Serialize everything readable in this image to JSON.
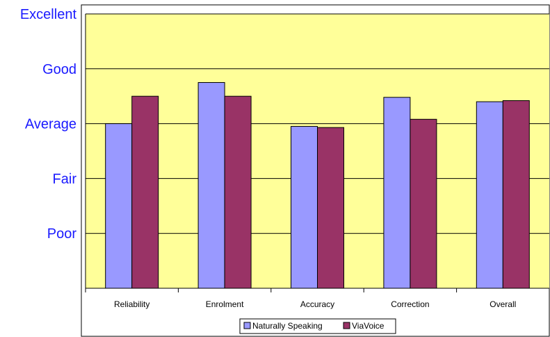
{
  "chart_data": {
    "type": "bar",
    "title": "",
    "xlabel": "",
    "ylabel": "",
    "ylim": [
      0,
      5
    ],
    "y_tick_labels": [
      "Poor",
      "Fair",
      "Average",
      "Good",
      "Excellent"
    ],
    "y_tick_values": [
      1,
      2,
      3,
      4,
      5
    ],
    "categories": [
      "Reliability",
      "Enrolment",
      "Accuracy",
      "Correction",
      "Overall"
    ],
    "series": [
      {
        "name": "Naturally Speaking",
        "color": "#9999ff",
        "values": [
          3.0,
          3.75,
          2.95,
          3.48,
          3.4
        ]
      },
      {
        "name": "ViaVoice",
        "color": "#993366",
        "values": [
          3.5,
          3.5,
          2.93,
          3.08,
          3.42
        ]
      }
    ],
    "plot_background": "#ffff99",
    "grid": true,
    "legend_position": "bottom"
  }
}
